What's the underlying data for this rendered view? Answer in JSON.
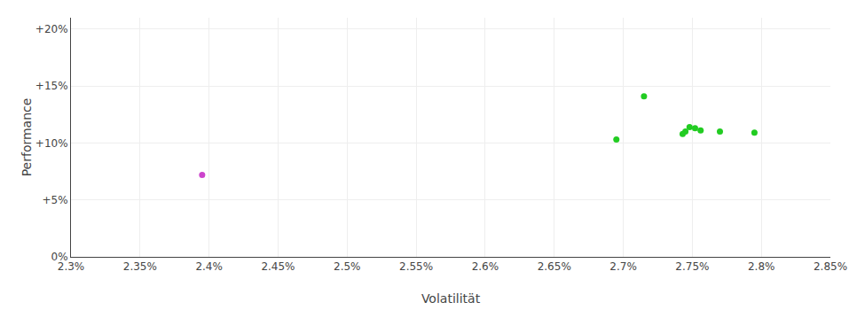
{
  "chart_data": {
    "type": "scatter",
    "x_label": "Volatilität",
    "y_label": "Performance",
    "xlim": [
      0.023,
      0.0285
    ],
    "ylim": [
      0.0,
      0.21
    ],
    "xticks": [
      {
        "value": 0.023,
        "label": "2.3%"
      },
      {
        "value": 0.0235,
        "label": "2.35%"
      },
      {
        "value": 0.024,
        "label": "2.4%"
      },
      {
        "value": 0.0245,
        "label": "2.45%"
      },
      {
        "value": 0.025,
        "label": "2.5%"
      },
      {
        "value": 0.0255,
        "label": "2.55%"
      },
      {
        "value": 0.026,
        "label": "2.6%"
      },
      {
        "value": 0.0265,
        "label": "2.65%"
      },
      {
        "value": 0.027,
        "label": "2.7%"
      },
      {
        "value": 0.0275,
        "label": "2.75%"
      },
      {
        "value": 0.028,
        "label": "2.8%"
      },
      {
        "value": 0.0285,
        "label": "2.85%"
      }
    ],
    "yticks": [
      {
        "value": 0.0,
        "label": "0%"
      },
      {
        "value": 0.05,
        "label": "+5%"
      },
      {
        "value": 0.1,
        "label": "+10%"
      },
      {
        "value": 0.15,
        "label": "+15%"
      },
      {
        "value": 0.2,
        "label": "+20%"
      }
    ],
    "grid": true,
    "series": [
      {
        "color": "#cc44cc",
        "x": [
          0.02395
        ],
        "values": [
          0.072
        ]
      },
      {
        "color": "#22cc22",
        "x": [
          0.02715,
          0.02695,
          0.02748,
          0.02752,
          0.02756,
          0.02745,
          0.02743,
          0.0277,
          0.02795
        ],
        "values": [
          0.141,
          0.103,
          0.114,
          0.113,
          0.111,
          0.11,
          0.108,
          0.11,
          0.109
        ]
      }
    ]
  }
}
